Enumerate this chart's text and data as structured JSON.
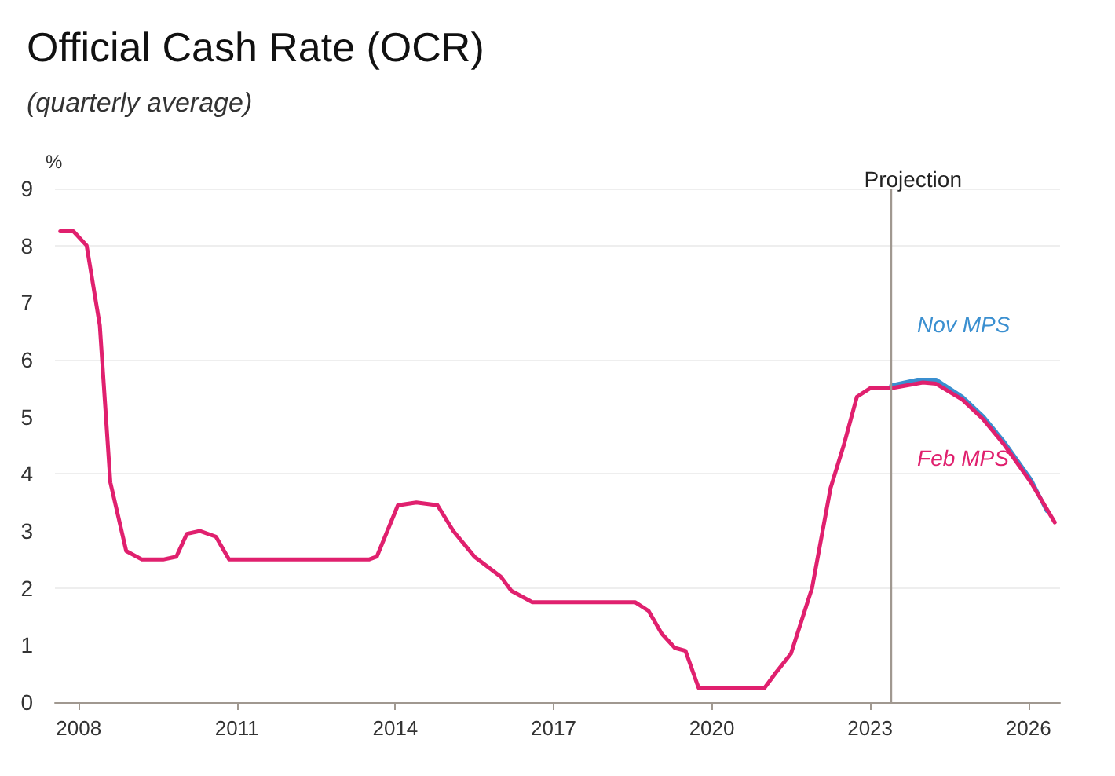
{
  "chart_data": {
    "type": "line",
    "title": "Official Cash Rate (OCR)",
    "subtitle": "(quarterly average)",
    "ylabel": "%",
    "xlim": [
      2007.55,
      2026.6
    ],
    "xticks": [
      2008,
      2011,
      2014,
      2017,
      2020,
      2023,
      2026
    ],
    "ylim": [
      0,
      9
    ],
    "yticks": [
      0,
      1,
      2,
      3,
      4,
      5,
      6,
      7,
      8,
      9
    ],
    "grid": "y",
    "legend": false,
    "marker": "none",
    "line_style": "solid",
    "ref_lines": [
      {
        "axis": "x",
        "value": 2023.4,
        "label": "Projection",
        "color": "#a09890"
      }
    ],
    "series": [
      {
        "name": "Nov MPS",
        "color": "#3a8fd0",
        "x": [
          2023.4,
          2023.9,
          2024.25,
          2024.75,
          2025.15,
          2025.55,
          2026.05,
          2026.35
        ],
        "values": [
          5.55,
          5.65,
          5.65,
          5.35,
          5.0,
          4.55,
          3.9,
          3.35
        ]
      },
      {
        "name": "Feb MPS",
        "color": "#e0206e",
        "x": [
          2007.65,
          2007.9,
          2008.15,
          2008.4,
          2008.6,
          2008.9,
          2009.2,
          2009.6,
          2009.85,
          2010.05,
          2010.3,
          2010.6,
          2010.85,
          2013.5,
          2013.65,
          2014.05,
          2014.4,
          2014.8,
          2015.1,
          2015.5,
          2016.0,
          2016.2,
          2016.6,
          2018.55,
          2018.8,
          2019.05,
          2019.3,
          2019.5,
          2019.75,
          2021.0,
          2021.2,
          2021.5,
          2021.9,
          2022.25,
          2022.5,
          2022.75,
          2023.0,
          2023.4,
          2024.0,
          2024.25,
          2024.75,
          2025.15,
          2025.55,
          2026.05,
          2026.5
        ],
        "values": [
          8.25,
          8.25,
          8.0,
          6.6,
          3.85,
          2.65,
          2.5,
          2.5,
          2.55,
          2.95,
          3.0,
          2.9,
          2.5,
          2.5,
          2.55,
          3.45,
          3.5,
          3.45,
          3.0,
          2.55,
          2.2,
          1.95,
          1.75,
          1.75,
          1.6,
          1.2,
          0.95,
          0.9,
          0.25,
          0.25,
          0.5,
          0.85,
          2.0,
          3.75,
          4.5,
          5.35,
          5.5,
          5.5,
          5.6,
          5.58,
          5.3,
          4.95,
          4.5,
          3.85,
          3.15
        ]
      }
    ]
  }
}
